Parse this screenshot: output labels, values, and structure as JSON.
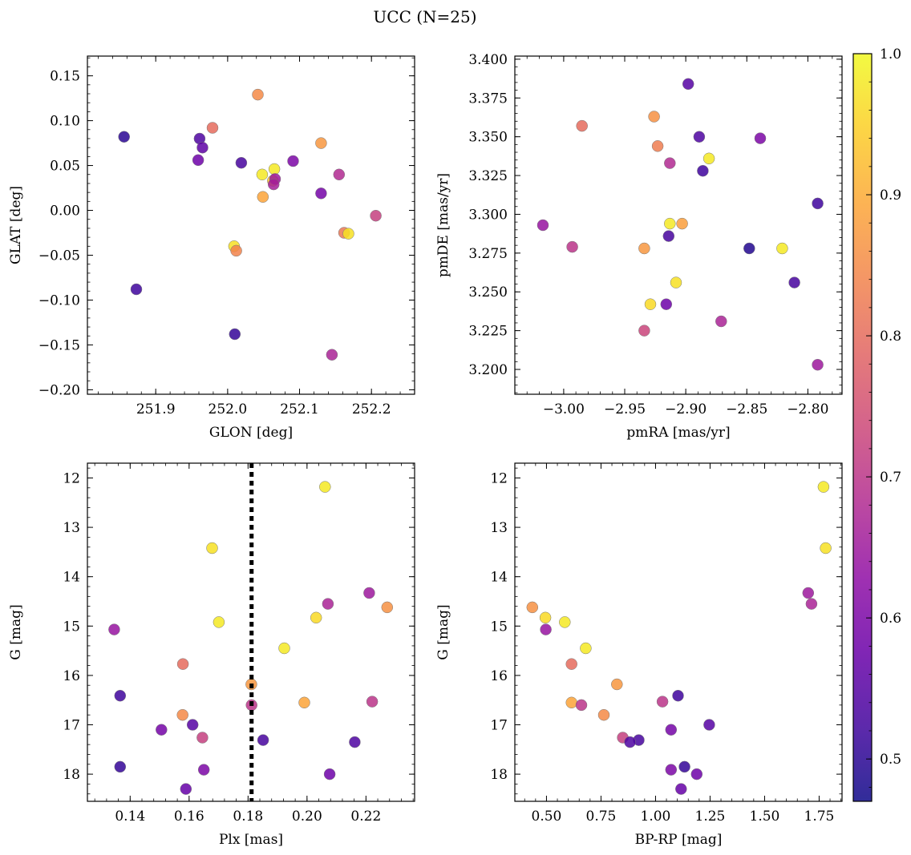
{
  "chart_data": {
    "title": "UCC (N=25)",
    "colorbar": {
      "cmap": "plasma",
      "range": [
        0.47,
        1.0
      ],
      "ticks": [
        0.5,
        0.6,
        0.7,
        0.8,
        0.9,
        1.0
      ],
      "tick_labels": [
        "0.5",
        "0.6",
        "0.7",
        "0.8",
        "0.9",
        "1.0"
      ]
    },
    "panels": [
      {
        "id": "glon-glat",
        "type": "scatter",
        "xlabel": "GLON [deg]",
        "ylabel": "GLAT [deg]",
        "xlim": [
          251.805,
          252.26
        ],
        "ylim": [
          -0.205,
          0.172
        ],
        "xticks": [
          251.9,
          252.0,
          252.1,
          252.2
        ],
        "xtick_labels": [
          "251.9",
          "252.0",
          "252.1",
          "252.2"
        ],
        "yticks": [
          -0.2,
          -0.15,
          -0.1,
          -0.05,
          0.0,
          0.05,
          0.1,
          0.15
        ],
        "ytick_labels": [
          "−0.20",
          "−0.15",
          "−0.10",
          "−0.05",
          "0.00",
          "0.05",
          "0.10",
          "0.15"
        ],
        "invert_y": false,
        "vline": null,
        "points": [
          {
            "x": 251.856,
            "y": 0.082,
            "c": 0.5
          },
          {
            "x": 251.873,
            "y": -0.088,
            "c": 0.52
          },
          {
            "x": 251.961,
            "y": 0.08,
            "c": 0.54
          },
          {
            "x": 251.965,
            "y": 0.07,
            "c": 0.56
          },
          {
            "x": 251.959,
            "y": 0.056,
            "c": 0.58
          },
          {
            "x": 251.979,
            "y": 0.092,
            "c": 0.8
          },
          {
            "x": 252.019,
            "y": 0.053,
            "c": 0.53
          },
          {
            "x": 252.042,
            "y": 0.129,
            "c": 0.85
          },
          {
            "x": 252.048,
            "y": 0.04,
            "c": 0.98
          },
          {
            "x": 252.065,
            "y": 0.046,
            "c": 0.98
          },
          {
            "x": 252.063,
            "y": 0.033,
            "c": 0.93
          },
          {
            "x": 252.066,
            "y": 0.035,
            "c": 0.65
          },
          {
            "x": 252.064,
            "y": 0.029,
            "c": 0.66
          },
          {
            "x": 252.049,
            "y": 0.015,
            "c": 0.89
          },
          {
            "x": 252.091,
            "y": 0.055,
            "c": 0.6
          },
          {
            "x": 252.13,
            "y": 0.075,
            "c": 0.87
          },
          {
            "x": 252.13,
            "y": 0.019,
            "c": 0.59
          },
          {
            "x": 252.155,
            "y": 0.04,
            "c": 0.68
          },
          {
            "x": 252.206,
            "y": -0.006,
            "c": 0.72
          },
          {
            "x": 252.162,
            "y": -0.025,
            "c": 0.82
          },
          {
            "x": 252.168,
            "y": -0.026,
            "c": 0.97
          },
          {
            "x": 252.009,
            "y": -0.04,
            "c": 0.97
          },
          {
            "x": 252.012,
            "y": -0.045,
            "c": 0.84
          },
          {
            "x": 252.01,
            "y": -0.138,
            "c": 0.51
          },
          {
            "x": 252.145,
            "y": -0.161,
            "c": 0.67
          }
        ]
      },
      {
        "id": "pmra-pmde",
        "type": "scatter",
        "xlabel": "pmRA [mas/yr]",
        "ylabel": "pmDE [mas/yr]",
        "xlim": [
          -3.04,
          -2.772
        ],
        "ylim": [
          3.184,
          3.402
        ],
        "xticks": [
          -3.0,
          -2.95,
          -2.9,
          -2.85,
          -2.8
        ],
        "xtick_labels": [
          "−3.00",
          "−2.95",
          "−2.90",
          "−2.85",
          "−2.80"
        ],
        "yticks": [
          3.2,
          3.225,
          3.25,
          3.275,
          3.3,
          3.325,
          3.35,
          3.375,
          3.4
        ],
        "ytick_labels": [
          "3.200",
          "3.225",
          "3.250",
          "3.275",
          "3.300",
          "3.325",
          "3.350",
          "3.375",
          "3.400"
        ],
        "invert_y": false,
        "vline": null,
        "points": [
          {
            "x": -3.017,
            "y": 3.293,
            "c": 0.64
          },
          {
            "x": -2.993,
            "y": 3.279,
            "c": 0.7
          },
          {
            "x": -2.985,
            "y": 3.357,
            "c": 0.8
          },
          {
            "x": -2.926,
            "y": 3.363,
            "c": 0.86
          },
          {
            "x": -2.923,
            "y": 3.344,
            "c": 0.83
          },
          {
            "x": -2.913,
            "y": 3.333,
            "c": 0.68
          },
          {
            "x": -2.898,
            "y": 3.384,
            "c": 0.55
          },
          {
            "x": -2.889,
            "y": 3.35,
            "c": 0.54
          },
          {
            "x": -2.886,
            "y": 3.328,
            "c": 0.52
          },
          {
            "x": -2.881,
            "y": 3.336,
            "c": 0.98
          },
          {
            "x": -2.839,
            "y": 3.349,
            "c": 0.6
          },
          {
            "x": -2.913,
            "y": 3.294,
            "c": 0.98
          },
          {
            "x": -2.903,
            "y": 3.294,
            "c": 0.88
          },
          {
            "x": -2.914,
            "y": 3.286,
            "c": 0.53
          },
          {
            "x": -2.934,
            "y": 3.278,
            "c": 0.87
          },
          {
            "x": -2.848,
            "y": 3.278,
            "c": 0.49
          },
          {
            "x": -2.821,
            "y": 3.278,
            "c": 0.98
          },
          {
            "x": -2.792,
            "y": 3.307,
            "c": 0.52
          },
          {
            "x": -2.811,
            "y": 3.256,
            "c": 0.53
          },
          {
            "x": -2.908,
            "y": 3.256,
            "c": 0.97
          },
          {
            "x": -2.929,
            "y": 3.242,
            "c": 0.96
          },
          {
            "x": -2.916,
            "y": 3.242,
            "c": 0.58
          },
          {
            "x": -2.934,
            "y": 3.225,
            "c": 0.73
          },
          {
            "x": -2.871,
            "y": 3.231,
            "c": 0.67
          },
          {
            "x": -2.792,
            "y": 3.203,
            "c": 0.65
          }
        ]
      },
      {
        "id": "plx-g",
        "type": "scatter",
        "xlabel": "Plx [mas]",
        "ylabel": "G [mag]",
        "xlim": [
          0.1255,
          0.2365
        ],
        "ylim": [
          11.7,
          18.55
        ],
        "xticks": [
          0.14,
          0.16,
          0.18,
          0.2,
          0.22
        ],
        "xtick_labels": [
          "0.14",
          "0.16",
          "0.18",
          "0.20",
          "0.22"
        ],
        "yticks": [
          12,
          13,
          14,
          15,
          16,
          17,
          18
        ],
        "ytick_labels": [
          "12",
          "13",
          "14",
          "15",
          "16",
          "17",
          "18"
        ],
        "invert_y": true,
        "vline": 0.1812,
        "points": [
          {
            "x": 0.2061,
            "y": 12.18,
            "c": 0.98
          },
          {
            "x": 0.1678,
            "y": 13.42,
            "c": 0.97
          },
          {
            "x": 0.2211,
            "y": 14.33,
            "c": 0.65
          },
          {
            "x": 0.2071,
            "y": 14.55,
            "c": 0.67
          },
          {
            "x": 0.2272,
            "y": 14.62,
            "c": 0.86
          },
          {
            "x": 0.2031,
            "y": 14.83,
            "c": 0.96
          },
          {
            "x": 0.1701,
            "y": 14.92,
            "c": 0.98
          },
          {
            "x": 0.1346,
            "y": 15.07,
            "c": 0.64
          },
          {
            "x": 0.1923,
            "y": 15.45,
            "c": 0.98
          },
          {
            "x": 0.1579,
            "y": 15.77,
            "c": 0.8
          },
          {
            "x": 0.1811,
            "y": 16.18,
            "c": 0.87
          },
          {
            "x": 0.1366,
            "y": 16.41,
            "c": 0.52
          },
          {
            "x": 0.1991,
            "y": 16.55,
            "c": 0.89
          },
          {
            "x": 0.2221,
            "y": 16.53,
            "c": 0.7
          },
          {
            "x": 0.1812,
            "y": 16.6,
            "c": 0.7
          },
          {
            "x": 0.1578,
            "y": 16.8,
            "c": 0.85
          },
          {
            "x": 0.1612,
            "y": 17.0,
            "c": 0.55
          },
          {
            "x": 0.1506,
            "y": 17.1,
            "c": 0.59
          },
          {
            "x": 0.1645,
            "y": 17.26,
            "c": 0.72
          },
          {
            "x": 0.1851,
            "y": 17.31,
            "c": 0.53
          },
          {
            "x": 0.2162,
            "y": 17.35,
            "c": 0.54
          },
          {
            "x": 0.1366,
            "y": 17.85,
            "c": 0.51
          },
          {
            "x": 0.165,
            "y": 17.91,
            "c": 0.6
          },
          {
            "x": 0.2077,
            "y": 18.0,
            "c": 0.58
          },
          {
            "x": 0.1589,
            "y": 18.3,
            "c": 0.57
          }
        ]
      },
      {
        "id": "bprp-g",
        "type": "scatter",
        "xlabel": "BP-RP [mag]",
        "ylabel": "G [mag]",
        "xlim": [
          0.355,
          1.855
        ],
        "ylim": [
          11.7,
          18.55
        ],
        "xticks": [
          0.5,
          0.75,
          1.0,
          1.25,
          1.5,
          1.75
        ],
        "xtick_labels": [
          "0.50",
          "0.75",
          "1.00",
          "1.25",
          "1.50",
          "1.75"
        ],
        "yticks": [
          12,
          13,
          14,
          15,
          16,
          17,
          18
        ],
        "ytick_labels": [
          "12",
          "13",
          "14",
          "15",
          "16",
          "17",
          "18"
        ],
        "invert_y": true,
        "vline": null,
        "points": [
          {
            "x": 1.77,
            "y": 12.18,
            "c": 0.98
          },
          {
            "x": 1.78,
            "y": 13.42,
            "c": 0.97
          },
          {
            "x": 1.7,
            "y": 14.33,
            "c": 0.65
          },
          {
            "x": 1.715,
            "y": 14.55,
            "c": 0.67
          },
          {
            "x": 0.435,
            "y": 14.62,
            "c": 0.86
          },
          {
            "x": 0.495,
            "y": 14.83,
            "c": 0.96
          },
          {
            "x": 0.584,
            "y": 14.92,
            "c": 0.98
          },
          {
            "x": 0.497,
            "y": 15.07,
            "c": 0.64
          },
          {
            "x": 0.68,
            "y": 15.45,
            "c": 0.98
          },
          {
            "x": 0.615,
            "y": 15.77,
            "c": 0.8
          },
          {
            "x": 0.823,
            "y": 16.18,
            "c": 0.87
          },
          {
            "x": 1.103,
            "y": 16.41,
            "c": 0.52
          },
          {
            "x": 0.615,
            "y": 16.55,
            "c": 0.89
          },
          {
            "x": 1.032,
            "y": 16.53,
            "c": 0.7
          },
          {
            "x": 0.66,
            "y": 16.6,
            "c": 0.7
          },
          {
            "x": 0.763,
            "y": 16.8,
            "c": 0.85
          },
          {
            "x": 1.246,
            "y": 17.0,
            "c": 0.55
          },
          {
            "x": 1.071,
            "y": 17.1,
            "c": 0.59
          },
          {
            "x": 0.85,
            "y": 17.26,
            "c": 0.72
          },
          {
            "x": 0.923,
            "y": 17.31,
            "c": 0.53
          },
          {
            "x": 0.883,
            "y": 17.35,
            "c": 0.54
          },
          {
            "x": 1.133,
            "y": 17.85,
            "c": 0.51
          },
          {
            "x": 1.071,
            "y": 17.91,
            "c": 0.6
          },
          {
            "x": 1.189,
            "y": 18.0,
            "c": 0.58
          },
          {
            "x": 1.117,
            "y": 18.3,
            "c": 0.57
          }
        ]
      }
    ]
  }
}
